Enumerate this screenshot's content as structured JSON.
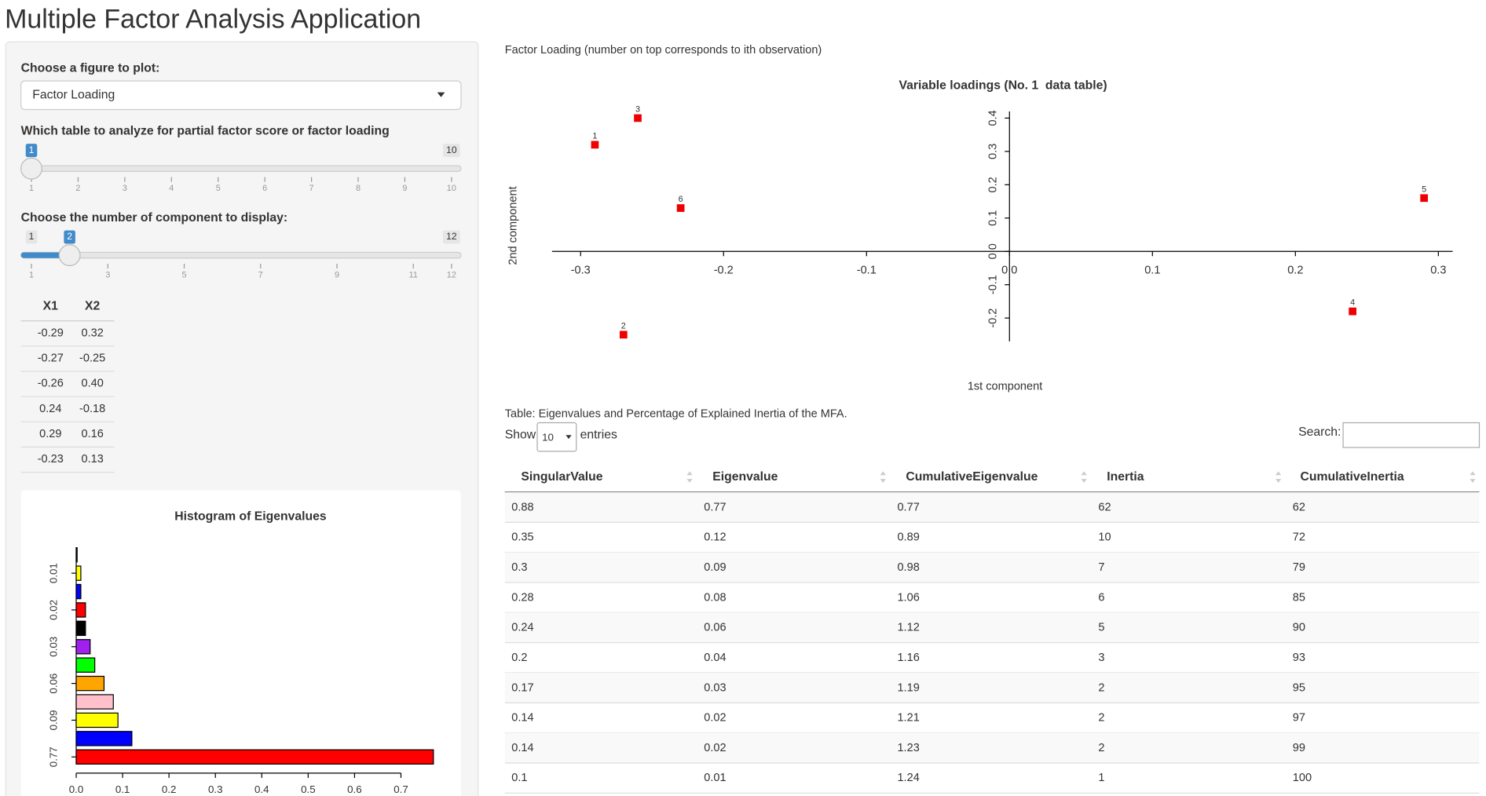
{
  "header": {
    "title": "Multiple Factor Analysis Application"
  },
  "sidebar": {
    "figure_select": {
      "label": "Choose a figure to plot:",
      "value": "Factor Loading"
    },
    "table_slider": {
      "label": "Which table to analyze for partial factor score or factor loading",
      "value": 1,
      "max": 10,
      "ticks": [
        1,
        2,
        3,
        4,
        5,
        6,
        7,
        8,
        9,
        10
      ]
    },
    "component_slider": {
      "label": "Choose the number of component to display:",
      "min": 1,
      "value": 2,
      "max": 12,
      "ticks": [
        1,
        3,
        5,
        7,
        9,
        11,
        12
      ]
    },
    "loadings_table": {
      "columns": [
        "X1",
        "X2"
      ],
      "rows": [
        [
          "-0.29",
          "0.32"
        ],
        [
          "-0.27",
          "-0.25"
        ],
        [
          "-0.26",
          "0.40"
        ],
        [
          "0.24",
          "-0.18"
        ],
        [
          "0.29",
          "0.16"
        ],
        [
          "-0.23",
          "0.13"
        ]
      ]
    }
  },
  "main": {
    "caption": "Factor Loading (number on top corresponds to ith observation)",
    "table": {
      "caption": "Table: Eigenvalues and Percentage of Explained Inertia of the MFA.",
      "show_label": "Show",
      "page_length": "10",
      "entries_label": "entries",
      "search_label": "Search:",
      "columns": [
        "SingularValue",
        "Eigenvalue",
        "CumulativeEigenvalue",
        "Inertia",
        "CumulativeInertia"
      ],
      "rows": [
        [
          "0.88",
          "0.77",
          "0.77",
          "62",
          "62"
        ],
        [
          "0.35",
          "0.12",
          "0.89",
          "10",
          "72"
        ],
        [
          "0.3",
          "0.09",
          "0.98",
          "7",
          "79"
        ],
        [
          "0.28",
          "0.08",
          "1.06",
          "6",
          "85"
        ],
        [
          "0.24",
          "0.06",
          "1.12",
          "5",
          "90"
        ],
        [
          "0.2",
          "0.04",
          "1.16",
          "3",
          "93"
        ],
        [
          "0.17",
          "0.03",
          "1.19",
          "2",
          "95"
        ],
        [
          "0.14",
          "0.02",
          "1.21",
          "2",
          "97"
        ],
        [
          "0.14",
          "0.02",
          "1.23",
          "2",
          "99"
        ],
        [
          "0.1",
          "0.01",
          "1.24",
          "1",
          "100"
        ]
      ]
    }
  },
  "chart_data": [
    {
      "type": "scatter",
      "title": "Variable loadings (No. 1  data table)",
      "x_label": "1st component",
      "y_label": "2nd component",
      "x": [
        -0.29,
        -0.27,
        -0.26,
        0.24,
        0.29,
        -0.23
      ],
      "y": [
        0.32,
        -0.25,
        0.4,
        -0.18,
        0.16,
        0.13
      ],
      "point_labels": [
        "1",
        "2",
        "3",
        "4",
        "5",
        "6"
      ],
      "color": "#ee0000",
      "xlim": [
        -0.32,
        0.31
      ],
      "ylim": [
        -0.27,
        0.42
      ],
      "xticks": [
        -0.3,
        -0.2,
        -0.1,
        {
          "value": 0,
          "label": "0.0"
        },
        0.1,
        0.2,
        0.3
      ],
      "yticks": [
        -0.2,
        -0.1,
        {
          "value": 0,
          "label": "0.0"
        },
        0.1,
        0.2,
        0.3,
        0.4
      ]
    },
    {
      "type": "bar",
      "orientation": "horizontal",
      "title": "Histogram of Eigenvalues",
      "categories": [
        "0.77",
        null,
        "0.09",
        null,
        "0.06",
        null,
        "0.03",
        null,
        "0.02",
        null,
        "0.01",
        null
      ],
      "values": [
        0.77,
        0.12,
        0.09,
        0.08,
        0.06,
        0.04,
        0.03,
        0.02,
        0.02,
        0.01,
        0.01,
        0.002
      ],
      "colors": [
        "#ff0000",
        "#0000ff",
        "#ffff00",
        "#ffc0cb",
        "#ffa500",
        "#00ff00",
        "#a020f0",
        "#000000",
        "#ff0000",
        "#0000ff",
        "#ffff00",
        "#ffc0cb"
      ],
      "xlim": [
        0,
        0.77
      ],
      "xticks": [
        {
          "value": 0,
          "label": "0.0"
        },
        0.1,
        0.2,
        0.3,
        0.4,
        0.5,
        0.6,
        0.7
      ]
    }
  ]
}
